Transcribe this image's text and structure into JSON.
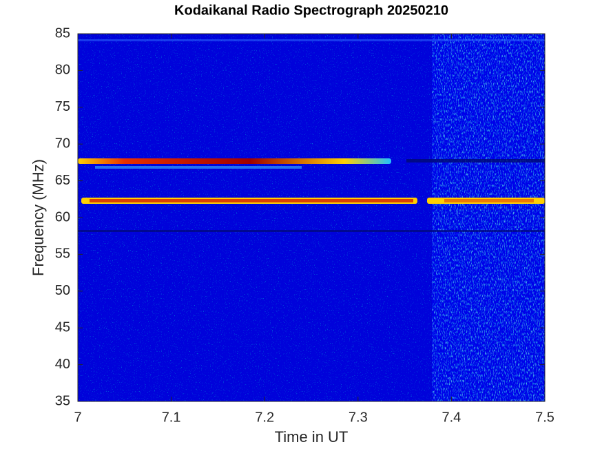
{
  "chart_data": {
    "type": "spectrogram",
    "title": "Kodaikanal Radio Spectrograph  20250210",
    "x_label": "Time in UT",
    "y_label": "Frequency (MHz)",
    "xlim": [
      7,
      7.5
    ],
    "xticks": [
      7,
      7.1,
      7.2,
      7.3,
      7.4,
      7.5
    ],
    "ylim": [
      35,
      85
    ],
    "yticks": [
      35,
      40,
      45,
      50,
      55,
      60,
      65,
      70,
      75,
      80,
      85
    ]
  }
}
